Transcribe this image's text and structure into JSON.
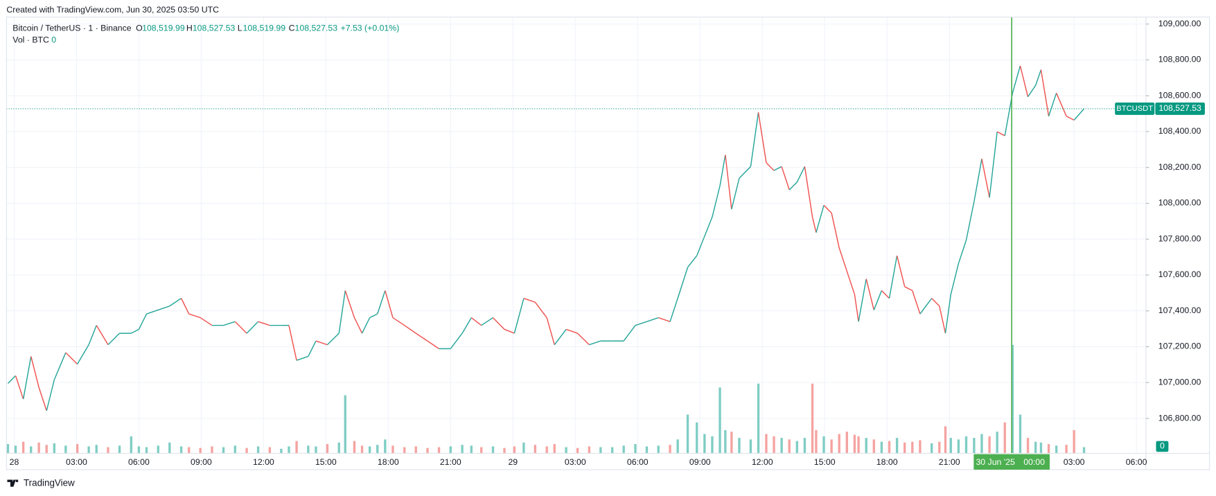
{
  "header": {
    "credit": "Created with TradingView.com, Jun 30, 2025 03:50 UTC"
  },
  "footer": {
    "brand": "TradingView"
  },
  "chart_data": {
    "type": "line",
    "legend": {
      "symbol": "Bitcoin / TetherUS · 1 · Binance",
      "open_label": "O",
      "open": "108,519.99",
      "high_label": "H",
      "high": "108,527.53",
      "low_label": "L",
      "low": "108,519.99",
      "close_label": "C",
      "close": "108,527.53",
      "change": "+7.53 (+0.01%)",
      "volume_label": "Vol · BTC",
      "volume": "0"
    },
    "x": [
      -0.3,
      0.07,
      0.44,
      0.81,
      1.19,
      1.56,
      1.93,
      2.48,
      3.04,
      3.59,
      3.96,
      4.52,
      5.07,
      5.63,
      6.0,
      6.37,
      6.93,
      7.48,
      8.04,
      8.41,
      8.96,
      9.52,
      10.07,
      10.63,
      11.19,
      11.74,
      12.3,
      12.85,
      13.22,
      13.59,
      14.15,
      14.52,
      15.07,
      15.63,
      15.93,
      16.37,
      16.74,
      17.11,
      17.48,
      17.85,
      18.22,
      18.78,
      19.33,
      19.89,
      20.44,
      21.0,
      21.56,
      22.0,
      22.48,
      23.04,
      23.59,
      24.07,
      24.52,
      25.07,
      25.63,
      26.0,
      26.56,
      27.11,
      27.67,
      28.22,
      28.78,
      29.33,
      29.89,
      30.44,
      31.0,
      31.56,
      31.93,
      32.41,
      32.85,
      33.22,
      33.59,
      33.96,
      34.22,
      34.52,
      34.89,
      35.44,
      35.81,
      36.19,
      36.56,
      36.93,
      37.3,
      37.67,
      38.04,
      38.41,
      38.59,
      38.96,
      39.33,
      39.7,
      40.07,
      40.44,
      40.63,
      41.0,
      41.37,
      41.74,
      42.11,
      42.48,
      42.85,
      43.22,
      43.59,
      44.15,
      44.52,
      44.81,
      45.07,
      45.44,
      45.81,
      46.19,
      46.56,
      46.93,
      47.3,
      47.67,
      48.04,
      48.41,
      48.78,
      49.15,
      49.41,
      49.78,
      50.15,
      50.63,
      51.0,
      51.48
    ],
    "series": [
      {
        "name": "BTCUSDT",
        "up_color": "#26a69a",
        "down_color": "#ef5350",
        "values": [
          106995,
          107038,
          106908,
          107146,
          106973,
          106843,
          107016,
          107167,
          107103,
          107211,
          107319,
          107211,
          107275,
          107275,
          107297,
          107383,
          107405,
          107427,
          107470,
          107383,
          107362,
          107319,
          107319,
          107340,
          107275,
          107340,
          107319,
          107319,
          107319,
          107124,
          107146,
          107232,
          107211,
          107275,
          107513,
          107362,
          107275,
          107362,
          107383,
          107513,
          107362,
          107319,
          107275,
          107232,
          107189,
          107189,
          107275,
          107362,
          107319,
          107362,
          107297,
          107275,
          107470,
          107448,
          107362,
          107211,
          107297,
          107275,
          107211,
          107232,
          107232,
          107232,
          107319,
          107340,
          107362,
          107340,
          107470,
          107643,
          107708,
          107816,
          107924,
          108097,
          108270,
          107967,
          108140,
          108205,
          108507,
          108226,
          108183,
          108205,
          108075,
          108118,
          108205,
          107924,
          107837,
          107989,
          107946,
          107751,
          107621,
          107492,
          107340,
          107578,
          107405,
          107513,
          107470,
          107708,
          107535,
          107513,
          107383,
          107470,
          107427,
          107275,
          107492,
          107664,
          107794,
          108010,
          108248,
          108032,
          108399,
          108377,
          108615,
          108767,
          108594,
          108658,
          108745,
          108486,
          108615,
          108486,
          108464,
          108527.53
        ]
      },
      {
        "name": "Vol · BTC",
        "axis": "volume",
        "up_color": "#7fcdc4",
        "down_color": "#f5a3a1",
        "values": [
          12,
          10,
          15,
          9,
          14,
          11,
          13,
          10,
          12,
          9,
          11,
          8,
          10,
          22,
          9,
          8,
          10,
          14,
          9,
          8,
          7,
          9,
          8,
          10,
          7,
          9,
          8,
          6,
          9,
          16,
          10,
          9,
          12,
          14,
          75,
          16,
          10,
          9,
          11,
          18,
          10,
          8,
          9,
          7,
          8,
          9,
          11,
          10,
          8,
          9,
          7,
          9,
          14,
          11,
          9,
          12,
          8,
          7,
          9,
          8,
          8,
          10,
          12,
          9,
          10,
          11,
          18,
          50,
          40,
          25,
          22,
          85,
          30,
          28,
          20,
          18,
          90,
          25,
          22,
          20,
          18,
          16,
          20,
          90,
          30,
          22,
          18,
          25,
          28,
          24,
          22,
          20,
          18,
          15,
          16,
          20,
          14,
          15,
          17,
          13,
          15,
          35,
          20,
          18,
          22,
          20,
          25,
          22,
          28,
          40,
          140,
          50,
          20,
          15,
          14,
          12,
          10,
          11,
          30,
          8
        ]
      }
    ],
    "xlim": [
      -0.37,
      54.46
    ],
    "xticks": [
      {
        "value": 0,
        "label": "28"
      },
      {
        "value": 3,
        "label": "03:00"
      },
      {
        "value": 6,
        "label": "06:00"
      },
      {
        "value": 9,
        "label": "09:00"
      },
      {
        "value": 12,
        "label": "12:00"
      },
      {
        "value": 15,
        "label": "15:00"
      },
      {
        "value": 18,
        "label": "18:00"
      },
      {
        "value": 21,
        "label": "21:00"
      },
      {
        "value": 24,
        "label": "29"
      },
      {
        "value": 27,
        "label": "03:00"
      },
      {
        "value": 30,
        "label": "06:00"
      },
      {
        "value": 33,
        "label": "09:00"
      },
      {
        "value": 36,
        "label": "12:00"
      },
      {
        "value": 39,
        "label": "15:00"
      },
      {
        "value": 42,
        "label": "18:00"
      },
      {
        "value": 45,
        "label": "21:00"
      },
      {
        "value": 51,
        "label": "03:00"
      },
      {
        "value": 54,
        "label": "06:00"
      }
    ],
    "ylim": [
      106605,
      109039
    ],
    "yticks": [
      {
        "value": 106800,
        "label": "106,800.00"
      },
      {
        "value": 107000,
        "label": "107,000.00"
      },
      {
        "value": 107200,
        "label": "107,200.00"
      },
      {
        "value": 107400,
        "label": "107,400.00"
      },
      {
        "value": 107600,
        "label": "107,600.00"
      },
      {
        "value": 107800,
        "label": "107,800.00"
      },
      {
        "value": 108000,
        "label": "108,000.00"
      },
      {
        "value": 108200,
        "label": "108,200.00"
      },
      {
        "value": 108400,
        "label": "108,400.00"
      },
      {
        "value": 108600,
        "label": "108,600.00"
      },
      {
        "value": 108800,
        "label": "108,800.00"
      },
      {
        "value": 109000,
        "label": "109,000.00"
      }
    ],
    "volume_lim": [
      0,
      150
    ],
    "grid": true,
    "last_price": {
      "symbol": "BTCUSDT",
      "value": 108527.53,
      "label": "108,527.53",
      "color": "#089981"
    },
    "crosshair": {
      "x": 48,
      "date_label": "30 Jun '25",
      "time_label": "00:00",
      "color": "#4caf50"
    }
  }
}
